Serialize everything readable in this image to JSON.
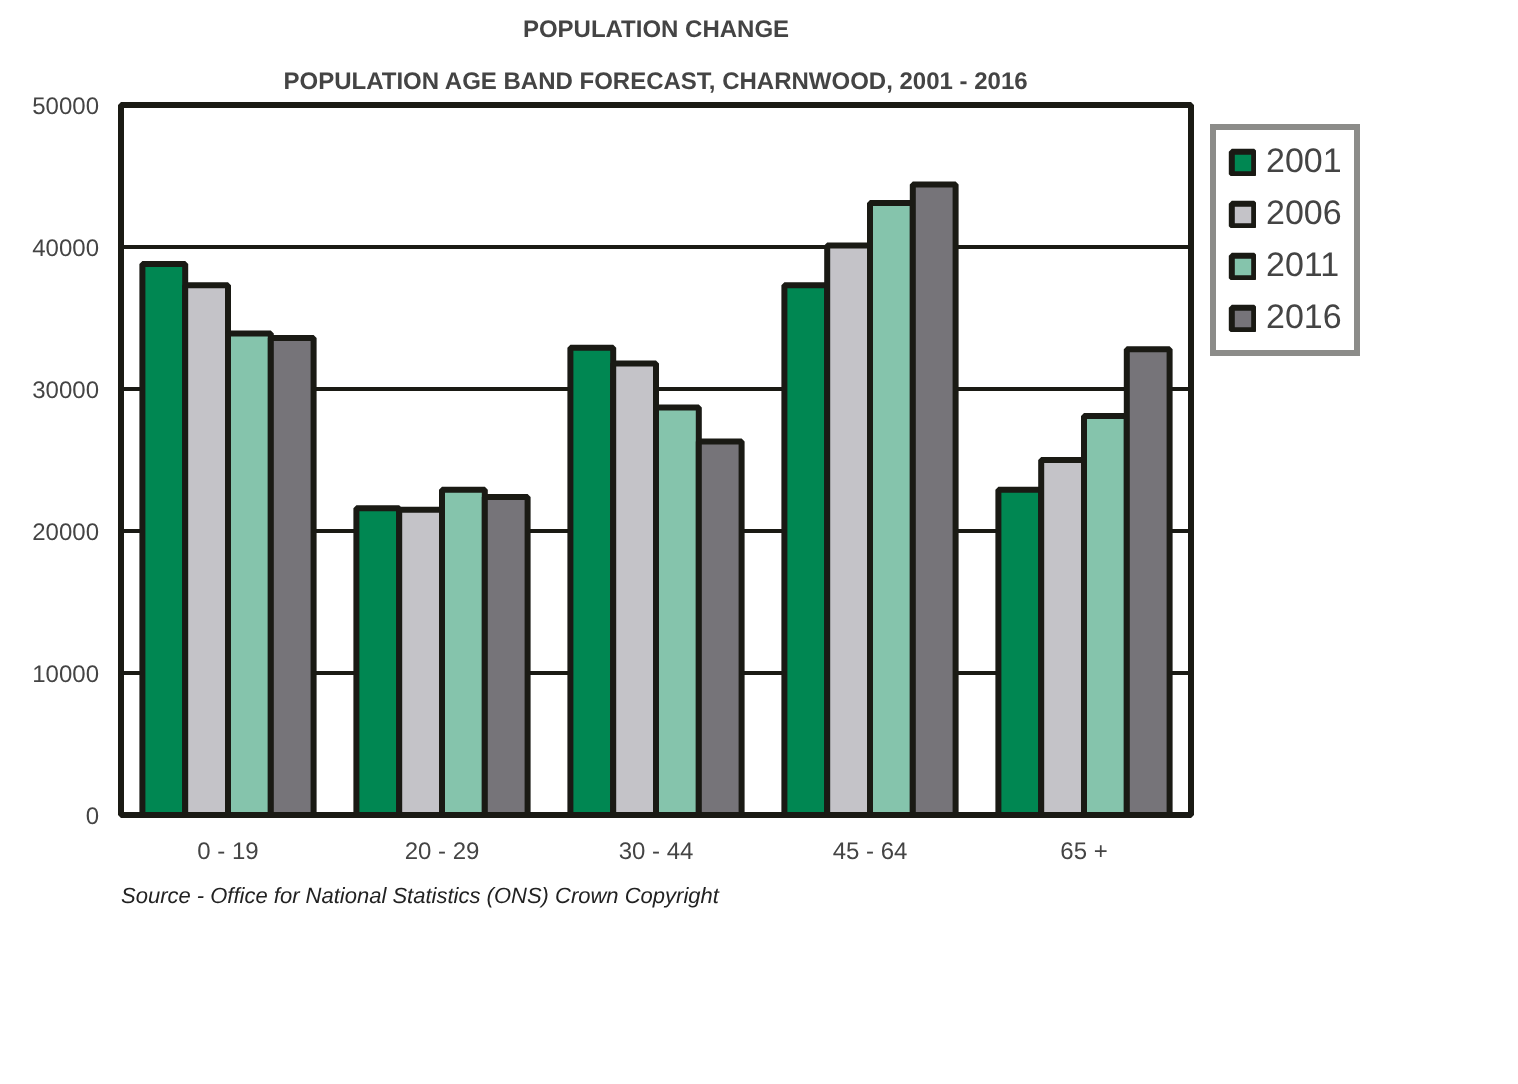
{
  "chart_data": {
    "type": "bar",
    "title": "POPULATION CHANGE",
    "subtitle": "POPULATION AGE BAND FORECAST, CHARNWOOD, 2001 - 2016",
    "categories": [
      "0 - 19",
      "20 - 29",
      "30 - 44",
      "45 - 64",
      "65 +"
    ],
    "series": [
      {
        "name": "2001",
        "color": "#008752",
        "values": [
          38800,
          21600,
          32900,
          37300,
          22900
        ]
      },
      {
        "name": "2006",
        "color": "#c4c3c8",
        "values": [
          37300,
          21500,
          31800,
          40100,
          25000
        ]
      },
      {
        "name": "2011",
        "color": "#85c4ac",
        "values": [
          33900,
          22900,
          28700,
          43100,
          28100
        ]
      },
      {
        "name": "2016",
        "color": "#767479",
        "values": [
          33600,
          22400,
          26300,
          44400,
          32800
        ]
      }
    ],
    "ylim": [
      0,
      50000
    ],
    "yticks": [
      0,
      10000,
      20000,
      30000,
      40000,
      50000
    ],
    "grid": "y",
    "legend": "top right",
    "annotations": [
      "Source - Office for National Statistics (ONS) Crown Copyright"
    ]
  }
}
